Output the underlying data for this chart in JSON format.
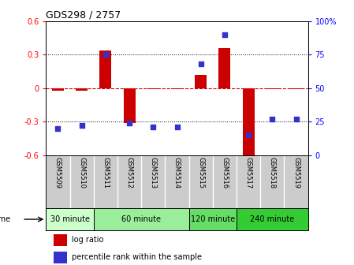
{
  "title": "GDS298 / 2757",
  "samples": [
    "GSM5509",
    "GSM5510",
    "GSM5511",
    "GSM5512",
    "GSM5513",
    "GSM5514",
    "GSM5515",
    "GSM5516",
    "GSM5517",
    "GSM5518",
    "GSM5519"
  ],
  "log_ratio": [
    -0.02,
    -0.02,
    0.34,
    -0.31,
    -0.01,
    -0.01,
    0.12,
    0.36,
    -0.62,
    -0.01,
    -0.01
  ],
  "percentile": [
    20,
    22,
    75,
    24,
    21,
    21,
    68,
    90,
    15,
    27,
    27
  ],
  "ylim_left": [
    -0.6,
    0.6
  ],
  "ylim_right": [
    0,
    100
  ],
  "yticks_left": [
    -0.6,
    -0.3,
    0.0,
    0.3,
    0.6
  ],
  "yticks_right": [
    0,
    25,
    50,
    75,
    100
  ],
  "ytick_labels_right": [
    "0",
    "25",
    "50",
    "75",
    "100%"
  ],
  "bar_color": "#cc0000",
  "dot_color": "#3333cc",
  "zero_line_color": "#cc0000",
  "grid_color": "#000000",
  "groups": [
    {
      "label": "30 minute",
      "start": 0,
      "end": 2,
      "color": "#ccffcc"
    },
    {
      "label": "60 minute",
      "start": 2,
      "end": 6,
      "color": "#99ee99"
    },
    {
      "label": "120 minute",
      "start": 6,
      "end": 8,
      "color": "#66dd66"
    },
    {
      "label": "240 minute",
      "start": 8,
      "end": 11,
      "color": "#33cc33"
    }
  ],
  "time_label": "time",
  "legend_bar_label": "log ratio",
  "legend_dot_label": "percentile rank within the sample",
  "background_color": "#ffffff",
  "tick_area_color": "#cccccc"
}
